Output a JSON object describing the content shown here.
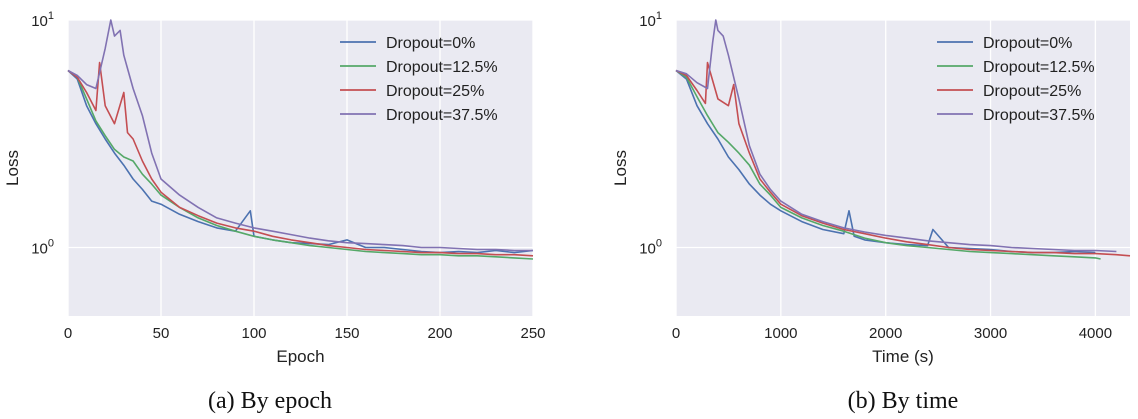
{
  "chart_data": [
    {
      "type": "line",
      "caption": "(a) By epoch",
      "xlabel": "Epoch",
      "ylabel": "Loss",
      "xlim": [
        0,
        250
      ],
      "ylim": [
        0.5,
        10
      ],
      "yscale": "log",
      "grid": true,
      "legend_position": "top-right",
      "x_ticks": [
        "0",
        "50",
        "100",
        "150",
        "200",
        "250"
      ],
      "y_ticks": [
        {
          "base": "10",
          "exp": "0",
          "value": 1
        },
        {
          "base": "10",
          "exp": "1",
          "value": 10
        }
      ],
      "series": [
        {
          "name": "Dropout=0%",
          "color": "#4c72b0",
          "x": [
            0,
            5,
            10,
            15,
            20,
            25,
            30,
            35,
            40,
            45,
            50,
            60,
            70,
            80,
            90,
            98,
            100,
            110,
            120,
            130,
            140,
            150,
            160,
            170,
            180,
            190,
            200,
            210,
            220,
            230,
            240,
            250
          ],
          "y": [
            6.0,
            5.5,
            4.2,
            3.5,
            3.0,
            2.6,
            2.3,
            2.0,
            1.8,
            1.6,
            1.55,
            1.4,
            1.3,
            1.22,
            1.18,
            1.45,
            1.12,
            1.08,
            1.05,
            1.04,
            1.03,
            1.08,
            1.0,
            1.0,
            0.98,
            0.96,
            0.95,
            0.96,
            0.95,
            0.97,
            0.95,
            0.97
          ]
        },
        {
          "name": "Dropout=12.5%",
          "color": "#55a868",
          "x": [
            0,
            5,
            10,
            15,
            20,
            25,
            30,
            35,
            40,
            45,
            50,
            60,
            70,
            80,
            90,
            100,
            110,
            120,
            130,
            140,
            150,
            160,
            170,
            180,
            190,
            200,
            210,
            220,
            230,
            240,
            250
          ],
          "y": [
            6.0,
            5.6,
            4.5,
            3.6,
            3.1,
            2.7,
            2.5,
            2.4,
            2.1,
            1.9,
            1.7,
            1.5,
            1.35,
            1.25,
            1.18,
            1.12,
            1.08,
            1.05,
            1.02,
            1.0,
            0.98,
            0.96,
            0.95,
            0.94,
            0.93,
            0.93,
            0.92,
            0.92,
            0.91,
            0.9,
            0.89
          ]
        },
        {
          "name": "Dropout=25%",
          "color": "#c44e52",
          "x": [
            0,
            5,
            10,
            15,
            17,
            20,
            25,
            30,
            32,
            35,
            40,
            45,
            50,
            60,
            70,
            80,
            90,
            100,
            110,
            120,
            130,
            140,
            150,
            160,
            170,
            180,
            190,
            200,
            210,
            220,
            230,
            240,
            250
          ],
          "y": [
            6.0,
            5.6,
            4.8,
            4.0,
            6.5,
            4.2,
            3.5,
            4.8,
            3.2,
            3.0,
            2.4,
            2.0,
            1.75,
            1.5,
            1.38,
            1.28,
            1.22,
            1.18,
            1.12,
            1.08,
            1.05,
            1.02,
            1.0,
            0.98,
            0.97,
            0.96,
            0.95,
            0.95,
            0.94,
            0.94,
            0.93,
            0.93,
            0.92
          ]
        },
        {
          "name": "Dropout=37.5%",
          "color": "#8172b2",
          "x": [
            0,
            5,
            10,
            15,
            20,
            23,
            25,
            28,
            30,
            35,
            40,
            45,
            50,
            60,
            70,
            80,
            90,
            100,
            110,
            120,
            130,
            140,
            150,
            160,
            170,
            180,
            190,
            200,
            210,
            220,
            230,
            240,
            250
          ],
          "y": [
            6.0,
            5.7,
            5.2,
            5.0,
            7.5,
            10.5,
            8.5,
            9.0,
            7.0,
            5.0,
            3.8,
            2.6,
            2.0,
            1.7,
            1.5,
            1.35,
            1.28,
            1.22,
            1.18,
            1.14,
            1.1,
            1.07,
            1.05,
            1.04,
            1.03,
            1.02,
            1.0,
            1.0,
            0.99,
            0.98,
            0.98,
            0.97,
            0.97
          ]
        }
      ]
    },
    {
      "type": "line",
      "caption": "(b) By time",
      "xlabel": "Time (s)",
      "ylabel": "Loss",
      "xlim": [
        0,
        4330
      ],
      "ylim": [
        0.5,
        10
      ],
      "yscale": "log",
      "grid": true,
      "legend_position": "top-right",
      "x_ticks": [
        "0",
        "1000",
        "2000",
        "3000",
        "4000"
      ],
      "x_tick_values": [
        0,
        1000,
        2000,
        3000,
        4000
      ],
      "y_ticks": [
        {
          "base": "10",
          "exp": "0",
          "value": 1
        },
        {
          "base": "10",
          "exp": "1",
          "value": 10
        }
      ],
      "series": [
        {
          "name": "Dropout=0%",
          "color": "#4c72b0",
          "x": [
            0,
            100,
            200,
            300,
            400,
            500,
            600,
            700,
            800,
            900,
            1000,
            1200,
            1400,
            1600,
            1650,
            1700,
            1800,
            2000,
            2200,
            2400,
            2450,
            2600,
            2800,
            3000,
            3200,
            3400,
            3600,
            3800,
            4000
          ],
          "y": [
            6.0,
            5.5,
            4.2,
            3.5,
            3.0,
            2.5,
            2.2,
            1.9,
            1.7,
            1.55,
            1.45,
            1.3,
            1.2,
            1.15,
            1.45,
            1.12,
            1.08,
            1.05,
            1.03,
            1.02,
            1.2,
            1.0,
            0.99,
            0.98,
            0.96,
            0.95,
            0.95,
            0.96,
            0.95
          ]
        },
        {
          "name": "Dropout=12.5%",
          "color": "#55a868",
          "x": [
            0,
            100,
            200,
            300,
            400,
            500,
            600,
            700,
            800,
            900,
            1000,
            1200,
            1400,
            1600,
            1800,
            2000,
            2200,
            2400,
            2600,
            2800,
            3000,
            3200,
            3400,
            3600,
            3800,
            4000,
            4050
          ],
          "y": [
            6.0,
            5.6,
            4.6,
            3.8,
            3.2,
            2.9,
            2.6,
            2.3,
            1.9,
            1.7,
            1.5,
            1.35,
            1.25,
            1.18,
            1.1,
            1.05,
            1.02,
            1.0,
            0.98,
            0.96,
            0.95,
            0.94,
            0.93,
            0.92,
            0.91,
            0.9,
            0.89
          ]
        },
        {
          "name": "Dropout=25%",
          "color": "#c44e52",
          "x": [
            0,
            100,
            200,
            280,
            300,
            400,
            500,
            550,
            600,
            700,
            800,
            900,
            1000,
            1200,
            1400,
            1600,
            1800,
            2000,
            2200,
            2400,
            2600,
            2800,
            3000,
            3200,
            3400,
            3600,
            3800,
            4000,
            4200,
            4330
          ],
          "y": [
            6.0,
            5.7,
            4.9,
            4.3,
            6.5,
            4.5,
            4.2,
            5.2,
            3.5,
            2.6,
            2.0,
            1.75,
            1.55,
            1.38,
            1.28,
            1.2,
            1.15,
            1.1,
            1.06,
            1.03,
            1.0,
            0.98,
            0.97,
            0.96,
            0.95,
            0.95,
            0.94,
            0.94,
            0.93,
            0.92
          ]
        },
        {
          "name": "Dropout=37.5%",
          "color": "#8172b2",
          "x": [
            0,
            100,
            200,
            300,
            350,
            380,
            400,
            450,
            500,
            600,
            700,
            800,
            900,
            1000,
            1200,
            1400,
            1600,
            1800,
            2000,
            2200,
            2400,
            2600,
            2800,
            3000,
            3200,
            3400,
            3600,
            3800,
            4000,
            4200
          ],
          "y": [
            6.0,
            5.8,
            5.3,
            5.0,
            8.0,
            10.5,
            9.0,
            8.5,
            7.0,
            4.5,
            2.8,
            2.1,
            1.8,
            1.6,
            1.4,
            1.3,
            1.22,
            1.17,
            1.13,
            1.1,
            1.07,
            1.05,
            1.03,
            1.02,
            1.0,
            0.99,
            0.98,
            0.97,
            0.97,
            0.96
          ]
        }
      ]
    }
  ]
}
